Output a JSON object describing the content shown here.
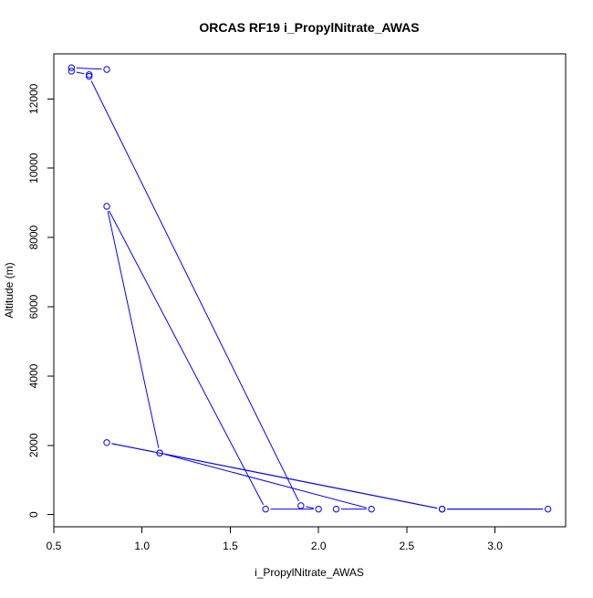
{
  "chart_data": {
    "type": "line",
    "title": "ORCAS RF19 i_PropylNitrate_AWAS",
    "xlabel": "i_PropylNitrate_AWAS",
    "ylabel": "Altitude (m)",
    "xlim": [
      0.5,
      3.4
    ],
    "ylim": [
      -350,
      13300
    ],
    "x_ticks": [
      0.5,
      1.0,
      1.5,
      2.0,
      2.5,
      3.0
    ],
    "x_tick_labels": [
      "0.5",
      "1.0",
      "1.5",
      "2.0",
      "2.5",
      "3.0"
    ],
    "y_ticks": [
      0,
      2000,
      4000,
      6000,
      8000,
      10000,
      12000
    ],
    "y_tick_labels": [
      "0",
      "2000",
      "4000",
      "6000",
      "8000",
      "10000",
      "12000"
    ],
    "grid": false,
    "legend": "none",
    "series": [
      {
        "color": "#0000ff",
        "marker": "open-circle",
        "points": [
          {
            "x": 0.8,
            "y": 12850
          },
          {
            "x": 0.6,
            "y": 12900
          },
          {
            "x": 0.6,
            "y": 12800
          },
          {
            "x": 0.7,
            "y": 12700
          },
          {
            "x": 0.7,
            "y": 12650
          },
          {
            "x": 1.9,
            "y": 260
          },
          {
            "x": 2.0,
            "y": 160
          },
          {
            "x": 1.7,
            "y": 160
          },
          {
            "x": 0.8,
            "y": 8900
          },
          {
            "x": 1.1,
            "y": 1780
          },
          {
            "x": 0.8,
            "y": 2080
          },
          {
            "x": 2.7,
            "y": 160
          },
          {
            "x": 3.3,
            "y": 160
          },
          {
            "x": 2.7,
            "y": 160
          },
          {
            "x": 1.1,
            "y": 1780
          },
          {
            "x": 2.3,
            "y": 160
          },
          {
            "x": 2.1,
            "y": 160
          }
        ]
      }
    ]
  }
}
